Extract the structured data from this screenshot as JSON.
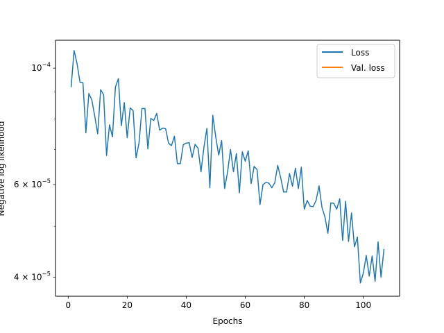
{
  "chart_data": {
    "type": "line",
    "title": "",
    "xlabel": "Epochs",
    "ylabel": "Negative log likelihood",
    "yscale": "log",
    "xlim": [
      -4.3,
      112.3
    ],
    "ylim": [
      3.68e-05,
      0.000113
    ],
    "x_ticks": [
      0,
      20,
      40,
      60,
      80,
      100
    ],
    "x_tick_labels": [
      "0",
      "20",
      "40",
      "60",
      "80",
      "100"
    ],
    "y_ticks": [
      4e-05,
      6e-05,
      0.0001
    ],
    "y_tick_labels": [
      {
        "base": "4 × 10",
        "exp": "−5"
      },
      {
        "base": "6 × 10",
        "exp": "−5"
      },
      {
        "base": "10",
        "exp": "−4"
      }
    ],
    "grid": false,
    "legend": "top-right",
    "colors": {
      "Loss": "#1f77b4",
      "Val. loss": "#ff7f0e"
    },
    "series": [
      {
        "name": "Loss",
        "x": [
          1,
          2,
          3,
          4,
          5,
          6,
          7,
          8,
          9,
          10,
          11,
          12,
          13,
          14,
          15,
          16,
          17,
          18,
          19,
          20,
          21,
          22,
          23,
          24,
          25,
          26,
          27,
          28,
          29,
          30,
          31,
          32,
          33,
          34,
          35,
          36,
          37,
          38,
          39,
          40,
          41,
          42,
          43,
          44,
          45,
          46,
          47,
          48,
          49,
          50,
          51,
          52,
          53,
          54,
          55,
          56,
          57,
          58,
          59,
          60,
          61,
          62,
          63,
          64,
          65,
          66,
          67,
          68,
          69,
          70,
          71,
          72,
          73,
          74,
          75,
          76,
          77,
          78,
          79,
          80,
          81,
          82,
          83,
          84,
          85,
          86,
          87,
          88,
          89,
          90,
          91,
          92,
          93,
          94,
          95,
          96,
          97,
          98,
          99,
          100,
          101,
          102,
          103,
          104,
          105,
          106,
          107
        ],
        "values": [
          9.22e-05,
          0.000108,
          0.000102,
          9.4e-05,
          9.38e-05,
          7.53e-05,
          8.95e-05,
          8.7e-05,
          8.1e-05,
          7.5e-05,
          9.1e-05,
          8.9e-05,
          6.82e-05,
          7.8e-05,
          7.4e-05,
          9.2e-05,
          9.55e-05,
          7.77e-05,
          8.6e-05,
          7.37e-05,
          8.4e-05,
          8.3e-05,
          6.75e-05,
          7.2e-05,
          8.38e-05,
          8.38e-05,
          7.02e-05,
          8.02e-05,
          7.95e-05,
          8.2e-05,
          7.62e-05,
          7.69e-05,
          7.67e-05,
          7.2e-05,
          7.12e-05,
          7.42e-05,
          6.58e-05,
          6.58e-05,
          7.15e-05,
          7.2e-05,
          7.21e-05,
          6.76e-05,
          7.16e-05,
          7.04e-05,
          6.35e-05,
          7.07e-05,
          7.68e-05,
          5.92e-05,
          8.13e-05,
          7.4e-05,
          6.83e-05,
          7.28e-05,
          5.9e-05,
          6.34e-05,
          7e-05,
          6.35e-05,
          6.88e-05,
          5.79e-05,
          6.93e-05,
          6.65e-05,
          6.96e-05,
          6.03e-05,
          6.5e-05,
          6.41e-05,
          5.5e-05,
          6e-05,
          6.06e-05,
          6.04e-05,
          5.92e-05,
          6.05e-05,
          6.53e-05,
          6.19e-05,
          5.81e-05,
          5.81e-05,
          6.3e-05,
          5.96e-05,
          6.45e-05,
          5.9e-05,
          6.48e-05,
          5.39e-05,
          5.6e-05,
          5.46e-05,
          5.45e-05,
          5.6e-05,
          5.97e-05,
          5.43e-05,
          5.21e-05,
          4.85e-05,
          5.54e-05,
          5.53e-05,
          5.39e-05,
          5.64e-05,
          4.7e-05,
          5.58e-05,
          4.68e-05,
          5.3e-05,
          4.57e-05,
          4.77e-05,
          3.9e-05,
          4.07e-05,
          4.4e-05,
          4.02e-05,
          4.39e-05,
          3.93e-05,
          4.67e-05,
          4e-05,
          4.52e-05
        ]
      },
      {
        "name": "Val. loss",
        "x": [],
        "values": []
      }
    ]
  }
}
